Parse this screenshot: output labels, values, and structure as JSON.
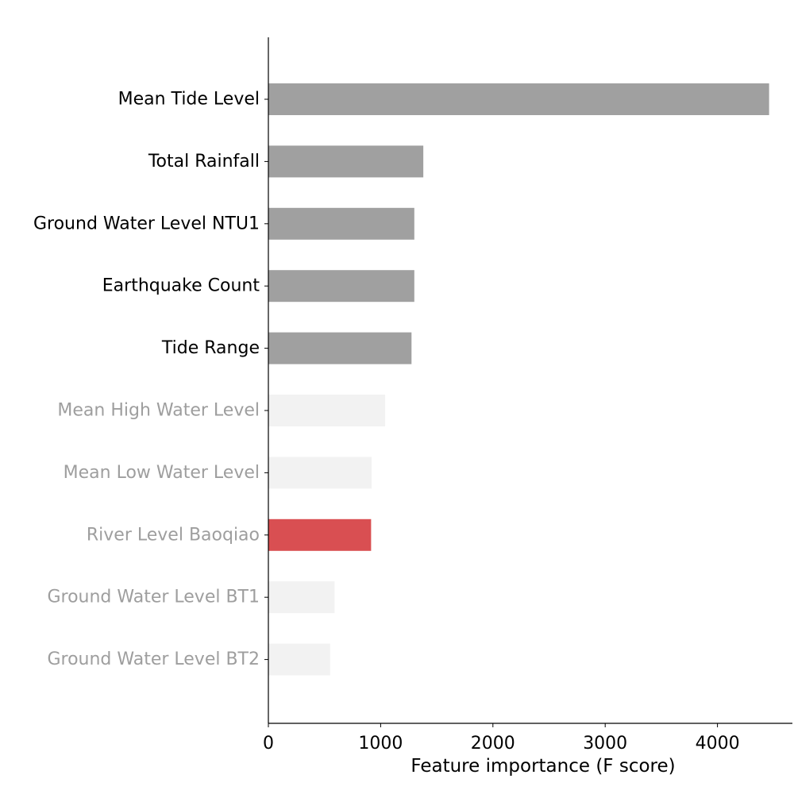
{
  "chart_data": {
    "type": "bar",
    "orientation": "horizontal",
    "title": "",
    "xlabel": "Feature importance (F score)",
    "ylabel": "",
    "xlim": [
      0,
      4660
    ],
    "xticks": [
      0,
      1000,
      2000,
      3000,
      4000
    ],
    "grid": false,
    "categories": [
      "Mean Tide Level",
      "Total Rainfall",
      "Ground Water Level NTU1",
      "Earthquake Count",
      "Tide Range",
      "Mean High Water Level",
      "Mean Low Water Level",
      "River Level Baoqiao",
      "Ground Water Level BT1",
      "Ground Water Level BT2"
    ],
    "values": [
      4460,
      1380,
      1300,
      1300,
      1275,
      1040,
      920,
      915,
      590,
      550
    ],
    "colors": {
      "highlight": "#a0a0a0",
      "muted": "#f2f2f2",
      "accent": "#d94f52",
      "label_dark": "#000000",
      "label_muted": "#9e9e9e",
      "axis": "#000000"
    },
    "bar_styles": [
      "highlight",
      "highlight",
      "highlight",
      "highlight",
      "highlight",
      "muted",
      "muted",
      "accent",
      "muted",
      "muted"
    ],
    "label_styles": [
      "dark",
      "dark",
      "dark",
      "dark",
      "dark",
      "muted",
      "muted",
      "muted",
      "muted",
      "muted"
    ]
  }
}
